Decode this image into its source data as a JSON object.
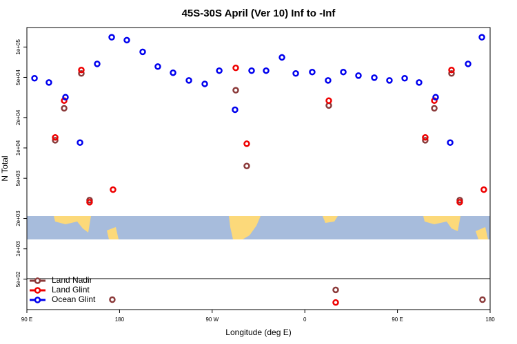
{
  "chart_data": {
    "type": "scatter",
    "title": "45S-30S April (Ver 10)   Inf to -Inf",
    "xlabel": "Longitude (deg E)",
    "ylabel": "N Total",
    "log_y": true,
    "legend": "lower left",
    "xlim": [
      90,
      540
    ],
    "ylim": [
      250,
      156000
    ],
    "xticks": [
      {
        "value": 90,
        "label": "90 E"
      },
      {
        "value": 180,
        "label": "180"
      },
      {
        "value": 270,
        "label": "90 W"
      },
      {
        "value": 360,
        "label": "0"
      },
      {
        "value": 450,
        "label": "90 E"
      },
      {
        "value": 540,
        "label": "180"
      }
    ],
    "yticks": [
      {
        "value": 500,
        "label": "5e+02"
      },
      {
        "value": 1000,
        "label": "1e+03"
      },
      {
        "value": 2000,
        "label": "2e+03"
      },
      {
        "value": 5000,
        "label": "5e+03"
      },
      {
        "value": 10000,
        "label": "1e+04"
      },
      {
        "value": 20000,
        "label": "2e+04"
      },
      {
        "value": 50000,
        "label": "5e+04"
      },
      {
        "value": 100000,
        "label": "1e+05"
      }
    ],
    "series": [
      {
        "name": "Land Nadir",
        "color": "#8b3a3a",
        "x": [
          117.5,
          126.2,
          142.9,
          150.9,
          173,
          292.9,
          303.6,
          383.3,
          390,
          477,
          485.8,
          502.5,
          510.5,
          532.6
        ],
        "values": [
          11900,
          24700,
          54700,
          3040,
          314,
          37300,
          6620,
          26300,
          392,
          11900,
          24700,
          54700,
          3040,
          314
        ]
      },
      {
        "name": "Land Glint",
        "color": "#ee0000",
        "x": [
          117.5,
          126.2,
          142.9,
          150.9,
          173.7,
          292.9,
          303.6,
          383.3,
          390,
          477,
          485.8,
          502.5,
          510.5,
          533.9
        ],
        "values": [
          12700,
          29400,
          59200,
          2900,
          3860,
          62100,
          11000,
          29400,
          294,
          12700,
          29400,
          59200,
          2900,
          3860
        ]
      },
      {
        "name": "Ocean Glint",
        "color": "#0000ee",
        "x": [
          97.4,
          111.4,
          127.5,
          141.6,
          158.3,
          172.4,
          187.1,
          202.5,
          217.2,
          232,
          247.4,
          262.8,
          276.9,
          292.2,
          308.3,
          322.4,
          337.8,
          351.2,
          367.2,
          382.6,
          397.4,
          412.1,
          427.5,
          442.2,
          457,
          471,
          487.1,
          501.2,
          518.6,
          532
        ],
        "values": [
          49000,
          44500,
          31800,
          11300,
          68000,
          125000,
          117000,
          89500,
          64000,
          55600,
          46700,
          43100,
          58300,
          23900,
          58300,
          58300,
          78900,
          54700,
          56500,
          46700,
          56500,
          52100,
          49700,
          46700,
          49000,
          44500,
          31800,
          11300,
          68000,
          125000
        ]
      }
    ]
  }
}
